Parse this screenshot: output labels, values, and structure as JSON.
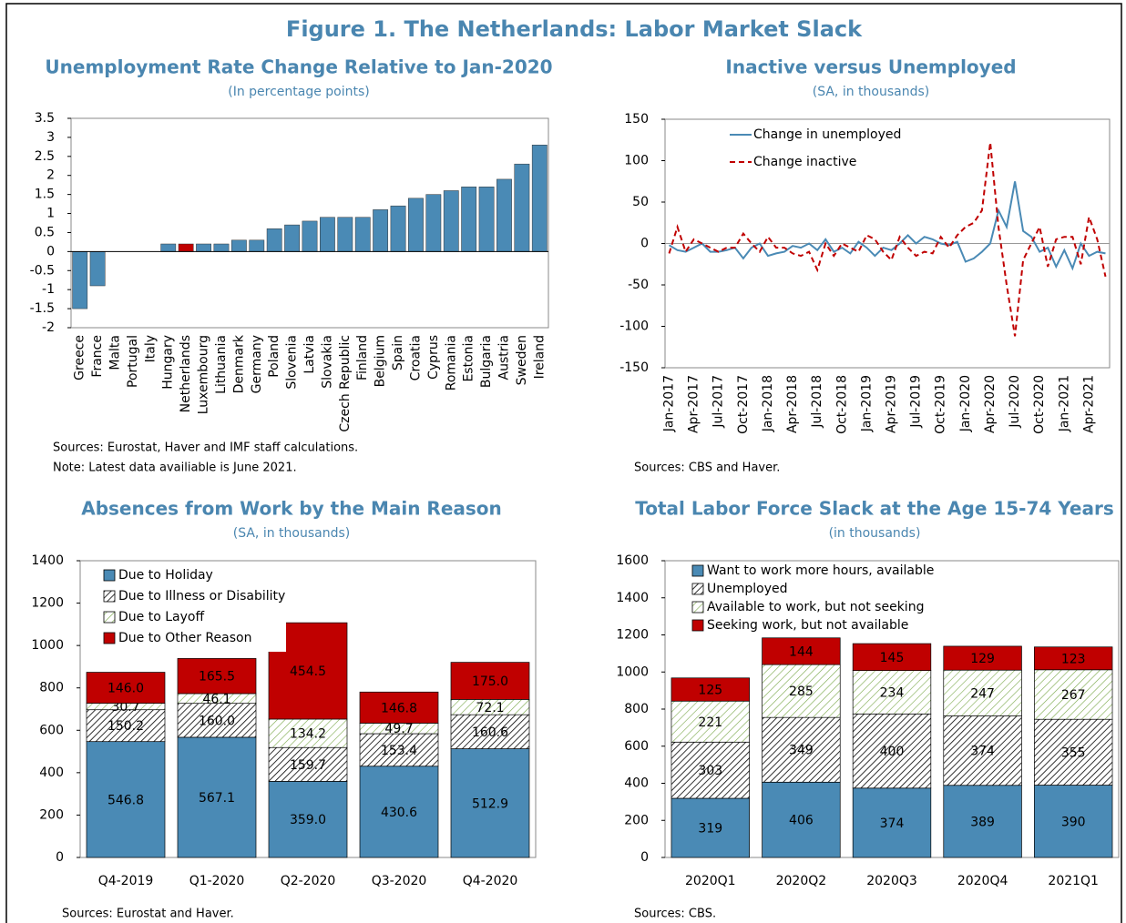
{
  "title": "Figure 1. The Netherlands: Labor Market Slack",
  "chart_data": [
    {
      "type": "bar",
      "title": "Unemployment Rate Change Relative to Jan-2020",
      "subtitle": "(In percentage points)",
      "categories": [
        "Greece",
        "France",
        "Malta",
        "Portugal",
        "Italy",
        "Hungary",
        "Netherlands",
        "Luxembourg",
        "Lithuania",
        "Denmark",
        "Germany",
        "Poland",
        "Slovenia",
        "Latvia",
        "Slovakia",
        "Czech Republic",
        "Finland",
        "Belgium",
        "Spain",
        "Croatia",
        "Cyprus",
        "Romania",
        "Estonia",
        "Bulgaria",
        "Austria",
        "Sweden",
        "Ireland"
      ],
      "values": [
        -1.5,
        -0.9,
        0,
        0,
        0,
        0.2,
        0.2,
        0.2,
        0.2,
        0.3,
        0.3,
        0.6,
        0.7,
        0.8,
        0.9,
        0.9,
        0.9,
        1.1,
        1.2,
        1.4,
        1.5,
        1.6,
        1.7,
        1.7,
        1.9,
        2.3,
        2.8
      ],
      "colors": [
        "#4a8ab5",
        "#4a8ab5",
        "#4a8ab5",
        "#4a8ab5",
        "#4a8ab5",
        "#4a8ab5",
        "#c00000",
        "#4a8ab5",
        "#4a8ab5",
        "#4a8ab5",
        "#4a8ab5",
        "#4a8ab5",
        "#4a8ab5",
        "#4a8ab5",
        "#4a8ab5",
        "#4a8ab5",
        "#4a8ab5",
        "#4a8ab5",
        "#4a8ab5",
        "#4a8ab5",
        "#4a8ab5",
        "#4a8ab5",
        "#4a8ab5",
        "#4a8ab5",
        "#4a8ab5",
        "#4a8ab5",
        "#4a8ab5"
      ],
      "ylim": [
        -2,
        3.5
      ],
      "yticks": [
        -2,
        -1.5,
        -1,
        -0.5,
        0,
        0.5,
        1,
        1.5,
        2,
        2.5,
        3,
        3.5
      ],
      "notes": [
        "Sources: Eurostat, Haver and IMF staff calculations.",
        "Note: Latest data availiable is June 2021."
      ]
    },
    {
      "type": "line",
      "title": "Inactive versus Unemployed",
      "subtitle": "(SA, in thousands)",
      "categories": [
        "Jan-2017",
        null,
        null,
        "Apr-2017",
        null,
        null,
        "Jul-2017",
        null,
        null,
        "Oct-2017",
        null,
        null,
        "Jan-2018",
        null,
        null,
        "Apr-2018",
        null,
        null,
        "Jul-2018",
        null,
        null,
        "Oct-2018",
        null,
        null,
        "Jan-2019",
        null,
        null,
        "Apr-2019",
        null,
        null,
        "Jul-2019",
        null,
        null,
        "Oct-2019",
        null,
        null,
        "Jan-2020",
        null,
        null,
        "Apr-2020",
        null,
        null,
        "Jul-2020",
        null,
        null,
        "Oct-2020",
        null,
        null,
        "Jan-2021",
        null,
        null,
        "Apr-2021",
        null,
        null
      ],
      "series": [
        {
          "name": "Change in unemployed",
          "color": "#4a8ab5",
          "dashed": false,
          "values": [
            -2,
            -8,
            -10,
            -5,
            0,
            -10,
            -10,
            -8,
            -5,
            -18,
            -5,
            0,
            -15,
            -12,
            -10,
            -3,
            -5,
            0,
            -8,
            5,
            -10,
            -5,
            -12,
            2,
            -5,
            -15,
            -5,
            -8,
            0,
            10,
            0,
            8,
            5,
            0,
            -2,
            2,
            -22,
            -18,
            -10,
            0,
            40,
            20,
            75,
            15,
            8,
            -10,
            -5,
            -28,
            -8,
            -30,
            0,
            -15,
            -10,
            -12
          ]
        },
        {
          "name": "Change inactive",
          "color": "#c00000",
          "dashed": true,
          "values": [
            -12,
            20,
            -10,
            5,
            0,
            -5,
            -10,
            -5,
            -5,
            12,
            0,
            -10,
            8,
            -5,
            -5,
            -12,
            -15,
            -10,
            -32,
            0,
            -15,
            0,
            -5,
            -10,
            10,
            5,
            -10,
            -20,
            8,
            -5,
            -15,
            -10,
            -12,
            8,
            -5,
            10,
            20,
            25,
            40,
            122,
            20,
            -50,
            -112,
            -20,
            0,
            20,
            -28,
            5,
            8,
            8,
            -25,
            32,
            5,
            -40
          ]
        }
      ],
      "ylim": [
        -150,
        150
      ],
      "yticks": [
        -150,
        -100,
        -50,
        0,
        50,
        100,
        150
      ],
      "legend": "upper left",
      "notes": [
        "Sources: CBS and Haver."
      ]
    },
    {
      "type": "stacked_bar",
      "title": "Absences from Work by the Main Reason",
      "subtitle": "(SA, in thousands)",
      "categories": [
        "Q4-2019",
        "Q1-2020",
        "Q2-2020",
        "Q3-2020",
        "Q4-2020"
      ],
      "series": [
        {
          "name": "Due to Holiday",
          "color": "#4a8ab5",
          "hatch": false,
          "values": [
            546.8,
            567.1,
            359.0,
            430.6,
            512.9
          ],
          "value_labels": [
            "546.8",
            "567.1",
            "359.0",
            "430.6",
            "512.9"
          ]
        },
        {
          "name": "Due to Illness or Disability",
          "color": "#000000",
          "hatch": true,
          "values": [
            150.2,
            160.0,
            159.7,
            153.4,
            160.6
          ],
          "value_labels": [
            "150.2",
            "160.0",
            "159.7",
            "153.4",
            "160.6"
          ]
        },
        {
          "name": "Due to Layoff",
          "color": "#7aa84a",
          "hatch": true,
          "values": [
            30.7,
            46.1,
            134.2,
            49.7,
            72.1
          ],
          "value_labels": [
            "30.7",
            "46.1",
            "134.2",
            "49.7",
            "72.1"
          ]
        },
        {
          "name": "Due to Other Reason",
          "color": "#c00000",
          "hatch": false,
          "values": [
            146.0,
            165.5,
            454.5,
            146.8,
            175.0
          ],
          "value_labels": [
            "146.0",
            "165.5",
            "454.5",
            "146.8",
            "175.0"
          ]
        }
      ],
      "ylim": [
        0,
        1400
      ],
      "yticks": [
        0,
        200,
        400,
        600,
        800,
        1000,
        1200,
        1400
      ],
      "legend": "upper left",
      "notes": [
        "Sources: Eurostat and Haver."
      ]
    },
    {
      "type": "stacked_bar",
      "title": "Total Labor Force Slack at the Age 15-74 Years",
      "subtitle": "(in thousands)",
      "categories": [
        "2020Q1",
        "2020Q2",
        "2020Q3",
        "2020Q4",
        "2021Q1"
      ],
      "series": [
        {
          "name": "Want to work more hours, available",
          "color": "#4a8ab5",
          "hatch": false,
          "values": [
            319,
            406,
            374,
            389,
            390
          ]
        },
        {
          "name": "Unemployed",
          "color": "#000000",
          "hatch": true,
          "values": [
            303,
            349,
            400,
            374,
            355
          ]
        },
        {
          "name": "Available to work, but not seeking",
          "color": "#7aa84a",
          "hatch": true,
          "values": [
            221,
            285,
            234,
            247,
            267
          ]
        },
        {
          "name": "Seeking work, but not available",
          "color": "#c00000",
          "hatch": false,
          "values": [
            125,
            144,
            145,
            129,
            123
          ]
        }
      ],
      "ylim": [
        0,
        1600
      ],
      "yticks": [
        0,
        200,
        400,
        600,
        800,
        1000,
        1200,
        1400,
        1600
      ],
      "legend": "upper left",
      "notes": [
        "Sources: CBS."
      ]
    }
  ]
}
